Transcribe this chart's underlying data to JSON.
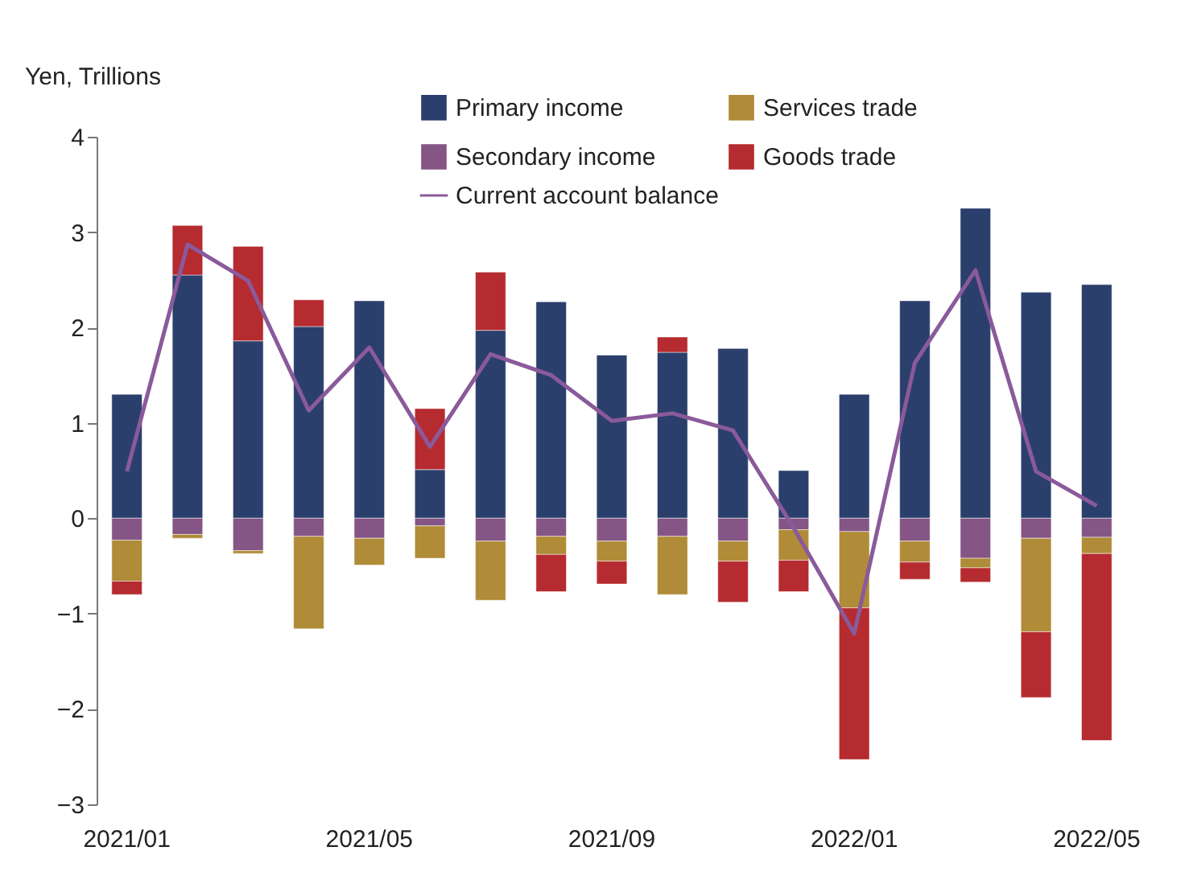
{
  "chart_data": {
    "type": "bar",
    "stacked": true,
    "ylabel": "Yen, Trillions",
    "categories": [
      "2021/01",
      null,
      null,
      null,
      "2021/05",
      null,
      null,
      null,
      "2021/09",
      null,
      null,
      null,
      "2022/01",
      null,
      null,
      null,
      "2022/05"
    ],
    "series": [
      {
        "name": "Primary income",
        "color": "#2b3f6c",
        "values": [
          1.3,
          2.55,
          1.86,
          2.01,
          2.28,
          0.51,
          1.97,
          2.27,
          1.71,
          1.74,
          1.78,
          0.5,
          1.3,
          2.28,
          3.25,
          2.37,
          2.45
        ]
      },
      {
        "name": "Secondary income",
        "color": "#845585",
        "values": [
          -0.23,
          -0.17,
          -0.34,
          -0.19,
          -0.21,
          -0.08,
          -0.24,
          -0.19,
          -0.24,
          -0.19,
          -0.24,
          -0.12,
          -0.14,
          -0.24,
          -0.42,
          -0.21,
          -0.2
        ]
      },
      {
        "name": "Services trade",
        "color": "#b08b38",
        "values": [
          -0.43,
          -0.04,
          -0.03,
          -0.97,
          -0.28,
          -0.34,
          -0.62,
          -0.19,
          -0.21,
          -0.61,
          -0.21,
          -0.32,
          -0.8,
          -0.22,
          -0.1,
          -0.98,
          -0.17
        ]
      },
      {
        "name": "Goods trade",
        "color": "#b52b30",
        "values": [
          -0.14,
          0.52,
          0.99,
          0.28,
          null,
          0.64,
          0.61,
          -0.39,
          -0.24,
          0.16,
          -0.43,
          -0.33,
          -1.59,
          -0.18,
          -0.15,
          -0.69,
          -1.96
        ]
      },
      {
        "name": "Current account balance",
        "type": "line",
        "color": "#8a5a9a",
        "values": [
          0.49,
          2.87,
          2.49,
          1.13,
          1.79,
          0.75,
          1.72,
          1.5,
          1.02,
          1.1,
          0.92,
          -0.1,
          -1.21,
          1.63,
          2.6,
          0.49,
          0.13
        ]
      }
    ],
    "ylim": [
      -3,
      4
    ],
    "yticks": [
      -3,
      -2,
      -1,
      0,
      1,
      2,
      3,
      4
    ],
    "grid": false,
    "legend": "top right"
  }
}
